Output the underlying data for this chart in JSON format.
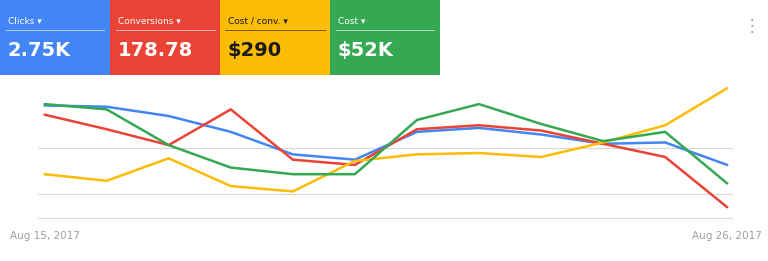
{
  "x_labels": [
    "Aug 15, 2017",
    "Aug 26, 2017"
  ],
  "x_points": [
    0,
    1,
    2,
    3,
    4,
    5,
    6,
    7,
    8,
    9,
    10,
    11
  ],
  "lines": {
    "Clicks": {
      "color": "#4285F4",
      "values": [
        0.85,
        0.84,
        0.77,
        0.65,
        0.48,
        0.44,
        0.65,
        0.68,
        0.63,
        0.56,
        0.57,
        0.4
      ]
    },
    "Conversions": {
      "color": "#EA4335",
      "values": [
        0.78,
        0.67,
        0.55,
        0.82,
        0.44,
        0.4,
        0.67,
        0.7,
        0.66,
        0.56,
        0.46,
        0.08
      ]
    },
    "Cost_conv": {
      "color": "#FBBC04",
      "values": [
        0.33,
        0.28,
        0.45,
        0.24,
        0.2,
        0.43,
        0.48,
        0.49,
        0.46,
        0.57,
        0.7,
        0.98
      ]
    },
    "Cost": {
      "color": "#34A853",
      "values": [
        0.86,
        0.82,
        0.55,
        0.38,
        0.33,
        0.33,
        0.74,
        0.86,
        0.71,
        0.58,
        0.65,
        0.26
      ]
    }
  },
  "legend_items": [
    {
      "label": "Clicks",
      "sublabel": "2.75K",
      "bg": "#4285F4",
      "text_color": "#ffffff"
    },
    {
      "label": "Conversions",
      "sublabel": "178.78",
      "bg": "#EA4335",
      "text_color": "#ffffff"
    },
    {
      "label": "Cost / conv.",
      "sublabel": "$290",
      "bg": "#FBBC04",
      "text_color": "#1a1a1a"
    },
    {
      "label": "Cost",
      "sublabel": "$52K",
      "bg": "#34A853",
      "text_color": "#ffffff"
    }
  ],
  "bg_color": "#ffffff",
  "grid_color": "#d8d8d8",
  "axis_label_color": "#9e9e9e",
  "line_width": 1.8
}
